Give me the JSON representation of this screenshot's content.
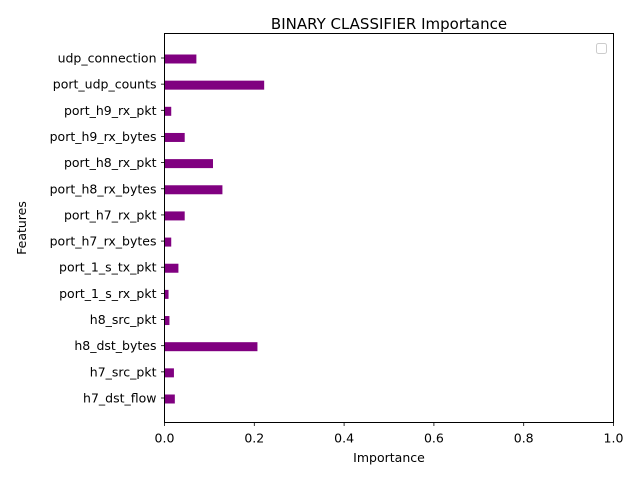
{
  "chart_data": {
    "type": "bar",
    "orientation": "horizontal",
    "title": "BINARY CLASSIFIER Importance",
    "xlabel": "Importance",
    "ylabel": "Features",
    "xlim": [
      0,
      1
    ],
    "xticks": [
      "0.0",
      "0.2",
      "0.4",
      "0.6",
      "0.8",
      "1.0"
    ],
    "categories": [
      "h7_dst_flow",
      "h7_src_pkt",
      "h8_dst_bytes",
      "h8_src_pkt",
      "port_1_s_rx_pkt",
      "port_1_s_tx_pkt",
      "port_h7_rx_bytes",
      "port_h7_rx_pkt",
      "port_h8_rx_bytes",
      "port_h8_rx_pkt",
      "port_h9_rx_bytes",
      "port_h9_rx_pkt",
      "port_udp_counts",
      "udp_connection"
    ],
    "values": [
      0.023,
      0.021,
      0.207,
      0.011,
      0.009,
      0.031,
      0.015,
      0.045,
      0.129,
      0.108,
      0.045,
      0.015,
      0.222,
      0.071
    ],
    "bar_color": "#800080",
    "grid": false,
    "legend": "top-right"
  }
}
